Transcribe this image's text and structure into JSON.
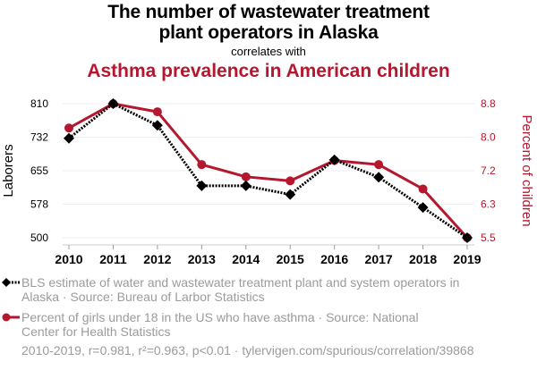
{
  "header": {
    "title_line1": "The number of wastewater treatment",
    "title_line2": "plant operators in Alaska",
    "subtitle": "correlates with",
    "title2": "Asthma prevalence in American children"
  },
  "colors": {
    "series1": "#000000",
    "series2": "#b5172e",
    "grid": "#eeeeee",
    "legend_text": "#9b9b9b"
  },
  "chart_data": {
    "type": "line",
    "title": "The number of wastewater treatment plant operators in Alaska correlates with Asthma prevalence in American children",
    "x": [
      "2010",
      "2011",
      "2012",
      "2013",
      "2014",
      "2015",
      "2016",
      "2017",
      "2018",
      "2019"
    ],
    "ylabel_left": "Laborers",
    "ylabel_right": "Percent of children",
    "yticks_left": [
      "500",
      "578",
      "655",
      "732",
      "810"
    ],
    "yticks_right": [
      "5.5",
      "6.3",
      "7.2",
      "8.0",
      "8.8"
    ],
    "ylim_left": [
      500,
      810
    ],
    "ylim_right": [
      5.5,
      8.8
    ],
    "grid": true,
    "legend_position": "bottom",
    "series": [
      {
        "name": "BLS estimate of water and wastewater treatment plant and system operators in Alaska",
        "axis": "left",
        "marker": "diamond",
        "style": "dotted",
        "values": [
          730,
          810,
          760,
          620,
          620,
          600,
          680,
          640,
          570,
          500
        ]
      },
      {
        "name": "Percent of girls under 18 in the US who have asthma",
        "axis": "right",
        "marker": "circle",
        "style": "solid",
        "values": [
          8.2,
          8.8,
          8.6,
          7.3,
          7.0,
          6.9,
          7.4,
          7.3,
          6.7,
          5.5
        ]
      }
    ]
  },
  "legend": {
    "series1_line1": "BLS estimate of water and wastewater treatment plant and system operators in",
    "series1_line2": "Alaska · Source: Bureau of Larbor Statistics",
    "series2_line1": "Percent of girls under 18 in the US who have asthma · Source: National",
    "series2_line2": "Center for Health Statistics"
  },
  "footer": "2010-2019, r=0.981, r²=0.963, p<0.01 · tylervigen.com/spurious/correlation/39868"
}
